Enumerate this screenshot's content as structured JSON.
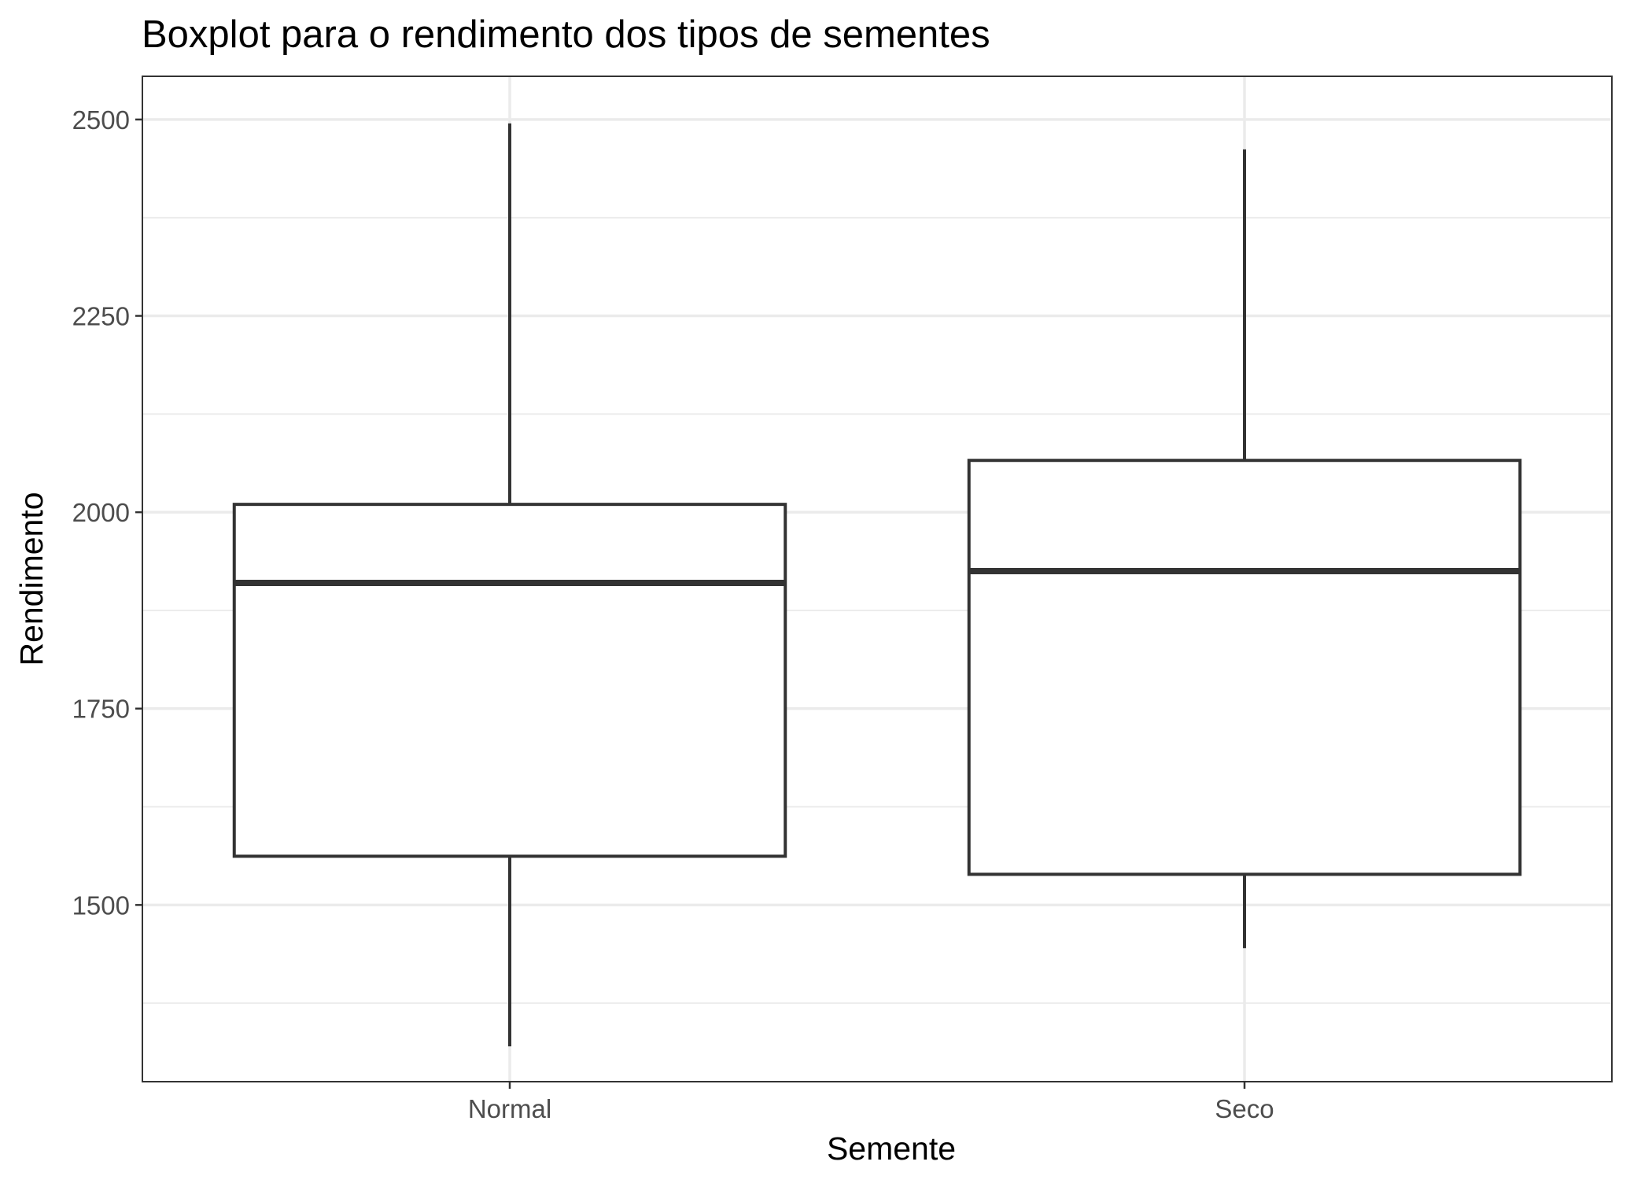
{
  "chart_data": {
    "type": "boxplot",
    "title": "Boxplot para o rendimento dos tipos de sementes",
    "xlabel": "Semente",
    "ylabel": "Rendimento",
    "categories": [
      "Normal",
      "Seco"
    ],
    "boxes": [
      {
        "category": "Normal",
        "lower_whisker": 1320,
        "q1": 1562,
        "median": 1910,
        "q3": 2010,
        "upper_whisker": 2495
      },
      {
        "category": "Seco",
        "lower_whisker": 1445,
        "q1": 1539,
        "median": 1925,
        "q3": 2066,
        "upper_whisker": 2462
      }
    ],
    "ylim": [
      1275,
      2555
    ],
    "yticks": [
      1500,
      1750,
      2000,
      2250,
      2500
    ],
    "yticks_minor": [
      1375,
      1625,
      1875,
      2125,
      2375
    ],
    "grid": true,
    "theme": "bw"
  }
}
